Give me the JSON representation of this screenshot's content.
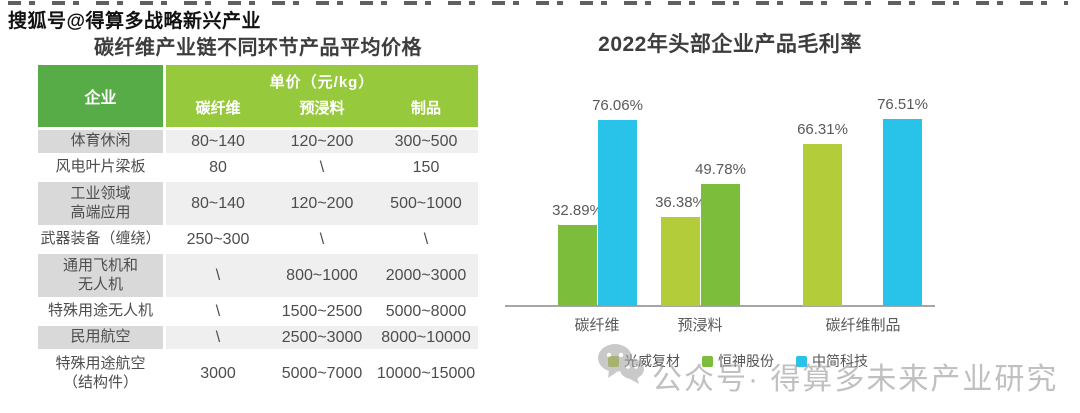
{
  "watermarks": {
    "sohu": "搜狐号@得算多战略新兴产业",
    "wechat": "公众号· 得算多未来产业研究"
  },
  "price_table": {
    "title": "碳纤维产业链不同环节产品平均价格",
    "corner_header": "企业",
    "unit_header": "单价（元/kg）",
    "columns": [
      "碳纤维",
      "预浸料",
      "制品"
    ],
    "rows": [
      {
        "label": "体育休闲",
        "values": [
          "80~140",
          "120~200",
          "300~500"
        ],
        "shaded": true,
        "tall": false
      },
      {
        "label": "风电叶片梁板",
        "values": [
          "80",
          "\\",
          "150"
        ],
        "shaded": false,
        "tall": false
      },
      {
        "label": "工业领域\n高端应用",
        "values": [
          "80~140",
          "120~200",
          "500~1000"
        ],
        "shaded": true,
        "tall": true
      },
      {
        "label": "武器装备（缠绕）",
        "values": [
          "250~300",
          "\\",
          "\\"
        ],
        "shaded": false,
        "tall": false
      },
      {
        "label": "通用飞机和\n无人机",
        "values": [
          "\\",
          "800~1000",
          "2000~3000"
        ],
        "shaded": true,
        "tall": true
      },
      {
        "label": "特殊用途无人机",
        "values": [
          "\\",
          "1500~2500",
          "5000~8000"
        ],
        "shaded": false,
        "tall": false
      },
      {
        "label": "民用航空",
        "values": [
          "\\",
          "2500~3000",
          "8000~10000"
        ],
        "shaded": true,
        "tall": false
      },
      {
        "label": "特殊用途航空\n（结构件）",
        "values": [
          "3000",
          "5000~7000",
          "10000~15000"
        ],
        "shaded": false,
        "tall": true
      }
    ],
    "colors": {
      "corner_bg": "#58AC47",
      "header_bg": "#97C93D",
      "shaded_label_bg": "#D9D9D9",
      "shaded_value_bg": "#EFEFEF"
    }
  },
  "chart_data": {
    "type": "bar",
    "title": "2022年头部企业产品毛利率",
    "categories": [
      "碳纤维",
      "预浸料",
      "碳纤维制品"
    ],
    "series": [
      {
        "name": "光威复材",
        "color": "#B3CC39",
        "values": [
          null,
          36.38,
          66.31
        ]
      },
      {
        "name": "恒神股份",
        "color": "#7CBE3C",
        "values": [
          32.89,
          49.78,
          null
        ]
      },
      {
        "name": "中简科技",
        "color": "#29C3EA",
        "values": [
          76.06,
          null,
          76.51
        ]
      }
    ],
    "data_labels": [
      "32.89%",
      "76.06%",
      "36.38%",
      "49.78%",
      "66.31%",
      "76.51%"
    ],
    "value_suffix": "%",
    "ylim": [
      0,
      100
    ],
    "grid": false,
    "legend_position": "bottom"
  }
}
